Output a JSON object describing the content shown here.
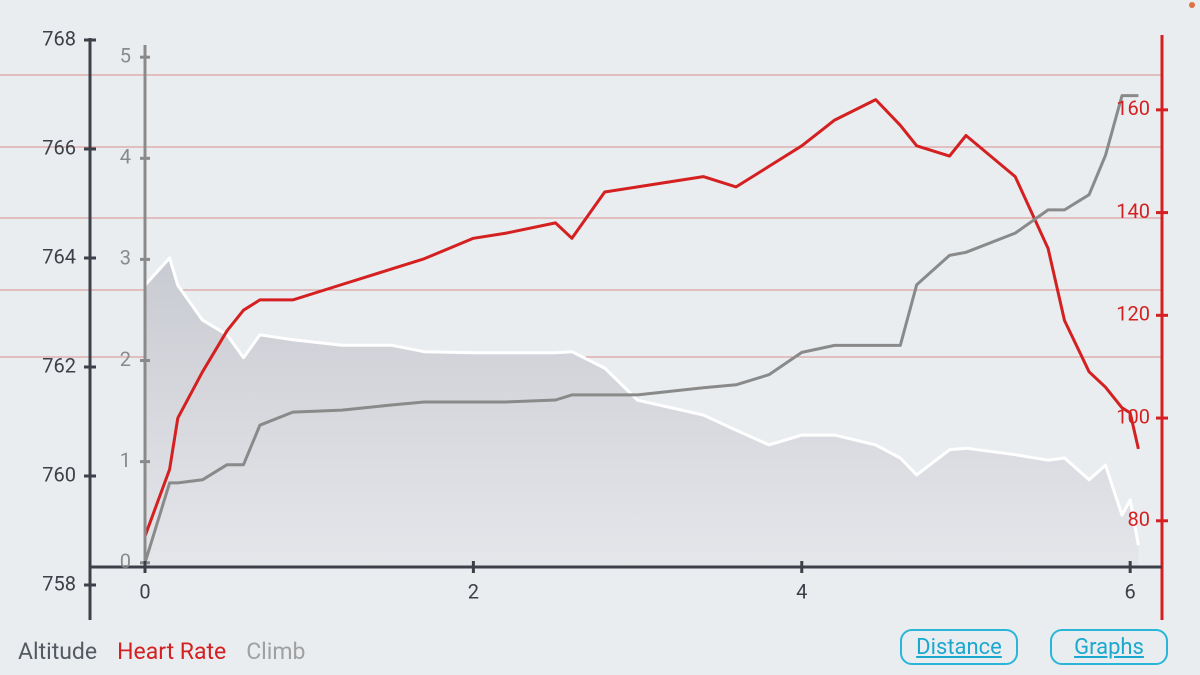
{
  "chart_data": {
    "type": "line",
    "x": [
      0,
      0.15,
      0.2,
      0.35,
      0.5,
      0.6,
      0.7,
      0.9,
      1.2,
      1.5,
      1.7,
      2.0,
      2.2,
      2.5,
      2.6,
      2.8,
      3.0,
      3.4,
      3.6,
      3.8,
      4.0,
      4.2,
      4.45,
      4.6,
      4.7,
      4.9,
      5.0,
      5.3,
      5.5,
      5.6,
      5.75,
      5.85,
      5.95,
      6.0,
      6.05
    ],
    "xlim": [
      -0.335,
      6.2
    ],
    "xticks": [
      0,
      2,
      4,
      6
    ],
    "ylim": [
      758,
      768
    ],
    "yticks": [
      758,
      760,
      762,
      764,
      766,
      768
    ],
    "y2lim": [
      67.5,
      173.6
    ],
    "y2ticks": [
      80,
      100,
      120,
      140,
      160
    ],
    "y3lim": [
      -0.22,
      5.17
    ],
    "y3ticks": [
      0,
      1,
      2,
      3,
      4,
      5
    ],
    "series": [
      {
        "name": "Altitude",
        "color": "#ffffff",
        "axis": "y",
        "fill": true,
        "values": [
          763.5,
          764.0,
          763.5,
          762.86,
          762.59,
          762.17,
          762.59,
          762.5,
          762.4,
          762.4,
          762.28,
          762.26,
          762.26,
          762.26,
          762.28,
          761.98,
          761.39,
          761.12,
          760.84,
          760.57,
          760.75,
          760.75,
          760.57,
          760.33,
          760.02,
          760.48,
          760.51,
          760.39,
          760.29,
          760.33,
          759.93,
          760.2,
          759.28,
          759.56,
          758.73
        ]
      },
      {
        "name": "Heart Rate",
        "color": "#d42020",
        "axis": "y2",
        "values": [
          77,
          90,
          100,
          109,
          117,
          121,
          123,
          123,
          126,
          129,
          131,
          135,
          136,
          138,
          135,
          144,
          145,
          147,
          145,
          149,
          153,
          158,
          162,
          157,
          153,
          151,
          155,
          147,
          133,
          119,
          109,
          106,
          102,
          101,
          94
        ]
      },
      {
        "name": "Climb",
        "color": "#8a8a8a",
        "axis": "y3",
        "values": [
          0,
          0.79,
          0.79,
          0.82,
          0.97,
          0.97,
          1.36,
          1.49,
          1.51,
          1.56,
          1.59,
          1.59,
          1.59,
          1.61,
          1.66,
          1.66,
          1.66,
          1.73,
          1.76,
          1.86,
          2.08,
          2.15,
          2.15,
          2.15,
          2.75,
          3.04,
          3.07,
          3.26,
          3.49,
          3.49,
          3.64,
          4.03,
          4.62,
          4.62,
          4.62
        ]
      }
    ]
  },
  "buttons": [
    "Distance",
    "Graphs"
  ]
}
